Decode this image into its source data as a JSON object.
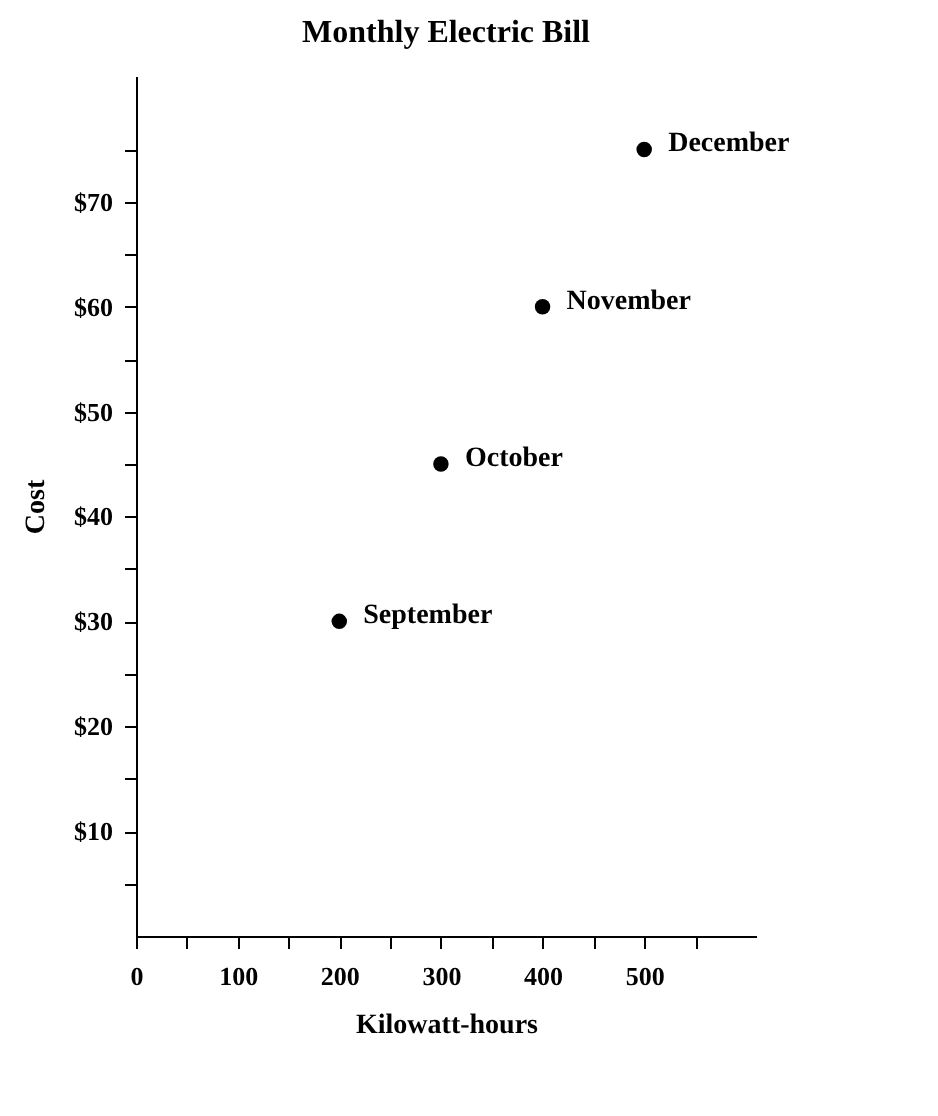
{
  "chart_data": {
    "type": "scatter",
    "title": "Monthly Electric Bill",
    "xlabel": "Kilowatt-hours",
    "ylabel": "Cost",
    "x": [
      200,
      300,
      400,
      500
    ],
    "series": [
      {
        "color": "#000000",
        "values": [
          30,
          45,
          60,
          75
        ]
      }
    ],
    "annotations": [
      {
        "text": "September",
        "x": 200,
        "y": 30
      },
      {
        "text": "October",
        "x": 300,
        "y": 45
      },
      {
        "text": "November",
        "x": 400,
        "y": 60
      },
      {
        "text": "December",
        "x": 500,
        "y": 75
      }
    ],
    "xlim": [
      0,
      610
    ],
    "ylim": [
      0,
      82
    ],
    "xticks": [
      0,
      {
        "value": 50,
        "label": null
      },
      100,
      {
        "value": 150,
        "label": null
      },
      200,
      {
        "value": 250,
        "label": null
      },
      300,
      {
        "value": 350,
        "label": null
      },
      400,
      {
        "value": 450,
        "label": null
      },
      500,
      {
        "value": 550,
        "label": null
      }
    ],
    "yticks": [
      {
        "value": 5,
        "label": null
      },
      {
        "value": 10,
        "label": "$10"
      },
      {
        "value": 15,
        "label": null
      },
      {
        "value": 20,
        "label": "$20"
      },
      {
        "value": 25,
        "label": null
      },
      {
        "value": 30,
        "label": "$30"
      },
      {
        "value": 35,
        "label": null
      },
      {
        "value": 40,
        "label": "$40"
      },
      {
        "value": 45,
        "label": null
      },
      {
        "value": 50,
        "label": "$50"
      },
      {
        "value": 55,
        "label": null
      },
      {
        "value": 60,
        "label": "$60"
      },
      {
        "value": 65,
        "label": null
      },
      {
        "value": 70,
        "label": "$70"
      },
      {
        "value": 75,
        "label": null
      }
    ],
    "grid": false,
    "marker": "circle"
  }
}
